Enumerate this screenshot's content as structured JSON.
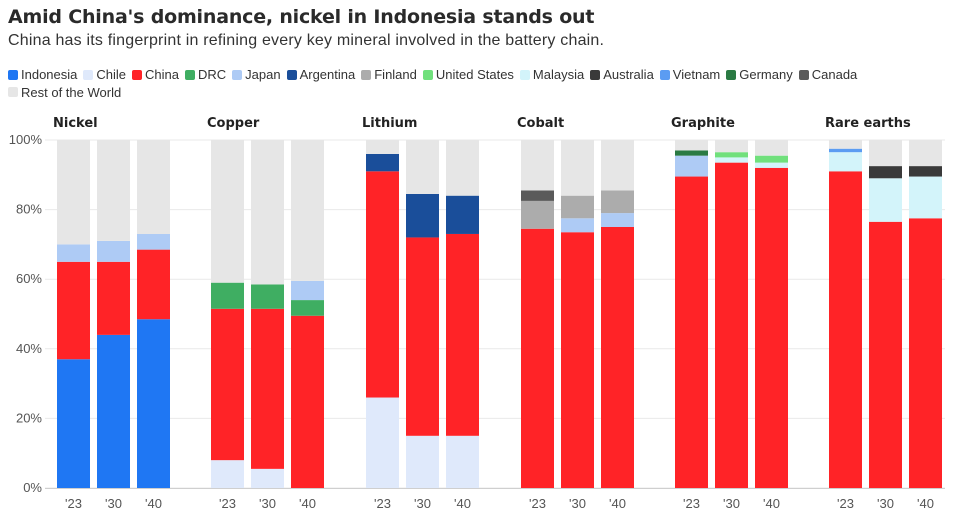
{
  "title": "Amid China's dominance, nickel in Indonesia stands out",
  "subtitle": "China has its fingerprint in refining every key mineral involved in the battery chain.",
  "legend": [
    {
      "label": "Indonesia",
      "color": "#1f77f3"
    },
    {
      "label": "Chile",
      "color": "#dfe9fb"
    },
    {
      "label": "China",
      "color": "#ff2327"
    },
    {
      "label": "DRC",
      "color": "#3fae62"
    },
    {
      "label": "Japan",
      "color": "#aecbf5"
    },
    {
      "label": "Argentina",
      "color": "#1a4e9a"
    },
    {
      "label": "Finland",
      "color": "#acacac"
    },
    {
      "label": "United States",
      "color": "#70e07c"
    },
    {
      "label": "Malaysia",
      "color": "#d3f4fa"
    },
    {
      "label": "Australia",
      "color": "#3a3a3a"
    },
    {
      "label": "Vietnam",
      "color": "#5b9cf2"
    },
    {
      "label": "Germany",
      "color": "#2a7a43"
    },
    {
      "label": "Canada",
      "color": "#5a5a5a"
    },
    {
      "label": "Rest of the World",
      "color": "#e6e6e6"
    }
  ],
  "chart_data": {
    "type": "bar",
    "stacked": true,
    "y_ticks": [
      "0%",
      "20%",
      "40%",
      "60%",
      "80%",
      "100%"
    ],
    "ylim": [
      0,
      100
    ],
    "x_labels": [
      "'23",
      "'30",
      "'40"
    ],
    "panels": [
      {
        "name": "Nickel",
        "bars": [
          {
            "x": "'23",
            "segments": [
              {
                "country": "Indonesia",
                "value": 37
              },
              {
                "country": "China",
                "value": 28
              },
              {
                "country": "Japan",
                "value": 5
              },
              {
                "country": "Rest of the World",
                "value": 30
              }
            ]
          },
          {
            "x": "'30",
            "segments": [
              {
                "country": "Indonesia",
                "value": 44
              },
              {
                "country": "China",
                "value": 21
              },
              {
                "country": "Japan",
                "value": 6
              },
              {
                "country": "Rest of the World",
                "value": 29
              }
            ]
          },
          {
            "x": "'40",
            "segments": [
              {
                "country": "Indonesia",
                "value": 48.5
              },
              {
                "country": "China",
                "value": 20
              },
              {
                "country": "Japan",
                "value": 4.5
              },
              {
                "country": "Rest of the World",
                "value": 27
              }
            ]
          }
        ]
      },
      {
        "name": "Copper",
        "bars": [
          {
            "x": "'23",
            "segments": [
              {
                "country": "Chile",
                "value": 8
              },
              {
                "country": "China",
                "value": 43.5
              },
              {
                "country": "DRC",
                "value": 7.5
              },
              {
                "country": "Rest of the World",
                "value": 41
              }
            ]
          },
          {
            "x": "'30",
            "segments": [
              {
                "country": "Chile",
                "value": 5.5
              },
              {
                "country": "China",
                "value": 46
              },
              {
                "country": "DRC",
                "value": 7
              },
              {
                "country": "Rest of the World",
                "value": 41.5
              }
            ]
          },
          {
            "x": "'40",
            "segments": [
              {
                "country": "China",
                "value": 49.5
              },
              {
                "country": "DRC",
                "value": 4.5
              },
              {
                "country": "Japan",
                "value": 5.5
              },
              {
                "country": "Rest of the World",
                "value": 40.5
              }
            ]
          }
        ]
      },
      {
        "name": "Lithium",
        "bars": [
          {
            "x": "'23",
            "segments": [
              {
                "country": "Chile",
                "value": 26
              },
              {
                "country": "China",
                "value": 65
              },
              {
                "country": "Argentina",
                "value": 5
              },
              {
                "country": "Rest of the World",
                "value": 4
              }
            ]
          },
          {
            "x": "'30",
            "segments": [
              {
                "country": "Chile",
                "value": 15
              },
              {
                "country": "China",
                "value": 57
              },
              {
                "country": "Argentina",
                "value": 12.5
              },
              {
                "country": "Rest of the World",
                "value": 15.5
              }
            ]
          },
          {
            "x": "'40",
            "segments": [
              {
                "country": "Chile",
                "value": 15
              },
              {
                "country": "China",
                "value": 58
              },
              {
                "country": "Argentina",
                "value": 11
              },
              {
                "country": "Rest of the World",
                "value": 16
              }
            ]
          }
        ]
      },
      {
        "name": "Cobalt",
        "bars": [
          {
            "x": "'23",
            "segments": [
              {
                "country": "China",
                "value": 74.5
              },
              {
                "country": "Finland",
                "value": 8
              },
              {
                "country": "Canada",
                "value": 3
              },
              {
                "country": "Rest of the World",
                "value": 14.5
              }
            ]
          },
          {
            "x": "'30",
            "segments": [
              {
                "country": "China",
                "value": 73.5
              },
              {
                "country": "Japan",
                "value": 4
              },
              {
                "country": "Finland",
                "value": 6.5
              },
              {
                "country": "Rest of the World",
                "value": 16
              }
            ]
          },
          {
            "x": "'40",
            "segments": [
              {
                "country": "China",
                "value": 75
              },
              {
                "country": "Japan",
                "value": 4
              },
              {
                "country": "Finland",
                "value": 6.5
              },
              {
                "country": "Rest of the World",
                "value": 14.5
              }
            ]
          }
        ]
      },
      {
        "name": "Graphite",
        "bars": [
          {
            "x": "'23",
            "segments": [
              {
                "country": "China",
                "value": 89.5
              },
              {
                "country": "Japan",
                "value": 6
              },
              {
                "country": "Germany",
                "value": 1.5
              },
              {
                "country": "Rest of the World",
                "value": 3
              }
            ]
          },
          {
            "x": "'30",
            "segments": [
              {
                "country": "China",
                "value": 93.5
              },
              {
                "country": "Malaysia",
                "value": 1.5
              },
              {
                "country": "United States",
                "value": 1.5
              },
              {
                "country": "Rest of the World",
                "value": 3.5
              }
            ]
          },
          {
            "x": "'40",
            "segments": [
              {
                "country": "China",
                "value": 92
              },
              {
                "country": "Malaysia",
                "value": 1.5
              },
              {
                "country": "United States",
                "value": 2
              },
              {
                "country": "Rest of the World",
                "value": 4.5
              }
            ]
          }
        ]
      },
      {
        "name": "Rare earths",
        "bars": [
          {
            "x": "'23",
            "segments": [
              {
                "country": "China",
                "value": 91
              },
              {
                "country": "Malaysia",
                "value": 5.5
              },
              {
                "country": "Vietnam",
                "value": 1
              },
              {
                "country": "Rest of the World",
                "value": 2.5
              }
            ]
          },
          {
            "x": "'30",
            "segments": [
              {
                "country": "China",
                "value": 76.5
              },
              {
                "country": "Malaysia",
                "value": 12.5
              },
              {
                "country": "Australia",
                "value": 3.5
              },
              {
                "country": "Rest of the World",
                "value": 7.5
              }
            ]
          },
          {
            "x": "'40",
            "segments": [
              {
                "country": "China",
                "value": 77.5
              },
              {
                "country": "Malaysia",
                "value": 12
              },
              {
                "country": "Australia",
                "value": 3
              },
              {
                "country": "Rest of the World",
                "value": 7.5
              }
            ]
          }
        ]
      }
    ]
  }
}
